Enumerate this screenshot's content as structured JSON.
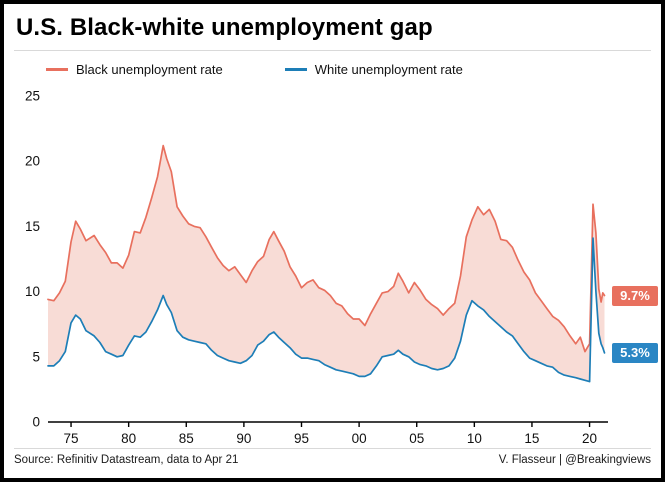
{
  "header": {
    "title": "U.S. Black-white unemployment gap"
  },
  "legend": [
    {
      "label": "Black unemployment rate",
      "color": "#e8705e"
    },
    {
      "label": "White unemployment rate",
      "color": "#1d7eb7"
    }
  ],
  "badges": [
    {
      "label": "9.7%",
      "color": "#e8705e",
      "value": 9.7
    },
    {
      "label": "5.3%",
      "color": "#2a86c4",
      "value": 5.3
    }
  ],
  "footer": {
    "source": "Source: Refinitiv Datastream, data to Apr 21",
    "credit": "V. Flasseur | @Breakingviews"
  },
  "chart_data": {
    "type": "line",
    "title": "U.S. Black-white unemployment gap",
    "xlabel": "",
    "ylabel": "",
    "xlim": [
      1973,
      2021.6
    ],
    "ylim": [
      0,
      25
    ],
    "grid": false,
    "legend_position": "top",
    "fill_between_color": "#f8dcd6",
    "axis_color": "#000000",
    "yticks": [
      0,
      5,
      10,
      15,
      20,
      25
    ],
    "xticks": [
      {
        "x": 1975,
        "label": "75"
      },
      {
        "x": 1980,
        "label": "80"
      },
      {
        "x": 1985,
        "label": "85"
      },
      {
        "x": 1990,
        "label": "90"
      },
      {
        "x": 1995,
        "label": "95"
      },
      {
        "x": 2000,
        "label": "00"
      },
      {
        "x": 2005,
        "label": "05"
      },
      {
        "x": 2010,
        "label": "10"
      },
      {
        "x": 2015,
        "label": "15"
      },
      {
        "x": 2020,
        "label": "20"
      }
    ],
    "x": [
      1973.0,
      1973.5,
      1974.0,
      1974.5,
      1975.0,
      1975.4,
      1975.8,
      1976.3,
      1977.0,
      1977.5,
      1978.0,
      1978.5,
      1979.0,
      1979.5,
      1980.0,
      1980.5,
      1981.0,
      1981.5,
      1982.0,
      1982.5,
      1983.0,
      1983.3,
      1983.7,
      1984.2,
      1984.7,
      1985.2,
      1985.7,
      1986.2,
      1986.7,
      1987.2,
      1987.7,
      1988.2,
      1988.7,
      1989.2,
      1989.7,
      1990.2,
      1990.7,
      1991.2,
      1991.7,
      1992.2,
      1992.6,
      1993.0,
      1993.5,
      1994.0,
      1994.5,
      1995.0,
      1995.5,
      1996.0,
      1996.5,
      1997.0,
      1997.5,
      1998.0,
      1998.5,
      1999.0,
      1999.5,
      2000.0,
      2000.5,
      2001.0,
      2001.5,
      2002.0,
      2002.5,
      2003.0,
      2003.4,
      2003.8,
      2004.3,
      2004.8,
      2005.3,
      2005.8,
      2006.3,
      2006.8,
      2007.3,
      2007.8,
      2008.3,
      2008.8,
      2009.3,
      2009.8,
      2010.3,
      2010.8,
      2011.3,
      2011.8,
      2012.3,
      2012.8,
      2013.3,
      2013.8,
      2014.3,
      2014.8,
      2015.3,
      2015.8,
      2016.3,
      2016.8,
      2017.3,
      2017.8,
      2018.3,
      2018.8,
      2019.2,
      2019.6,
      2020.0,
      2020.3,
      2020.55,
      2020.8,
      2021.0,
      2021.15,
      2021.3
    ],
    "series": [
      {
        "name": "Black unemployment rate",
        "color": "#e8705e",
        "end_label": "9.7%",
        "values": [
          9.4,
          9.3,
          9.9,
          10.8,
          13.8,
          15.4,
          14.8,
          13.9,
          14.3,
          13.6,
          13.0,
          12.2,
          12.2,
          11.8,
          12.8,
          14.6,
          14.5,
          15.7,
          17.2,
          18.8,
          21.2,
          20.2,
          19.2,
          16.5,
          15.8,
          15.2,
          15.0,
          14.9,
          14.2,
          13.4,
          12.6,
          12.0,
          11.6,
          11.9,
          11.3,
          10.7,
          11.6,
          12.3,
          12.7,
          14.0,
          14.6,
          13.9,
          13.1,
          11.9,
          11.2,
          10.3,
          10.7,
          10.9,
          10.3,
          10.1,
          9.7,
          9.1,
          8.9,
          8.3,
          7.9,
          7.9,
          7.4,
          8.3,
          9.1,
          9.9,
          10.0,
          10.4,
          11.4,
          10.8,
          9.9,
          10.7,
          10.1,
          9.4,
          9.0,
          8.7,
          8.2,
          8.7,
          9.1,
          11.2,
          14.2,
          15.5,
          16.5,
          15.9,
          16.3,
          15.4,
          14.0,
          13.9,
          13.4,
          12.4,
          11.5,
          10.9,
          9.9,
          9.3,
          8.7,
          8.1,
          7.8,
          7.3,
          6.6,
          6.0,
          6.5,
          5.4,
          6.0,
          16.7,
          14.5,
          10.2,
          9.2,
          9.9,
          9.7
        ]
      },
      {
        "name": "White unemployment rate",
        "color": "#1d7eb7",
        "end_label": "5.3%",
        "values": [
          4.3,
          4.3,
          4.7,
          5.4,
          7.6,
          8.2,
          7.9,
          7.0,
          6.6,
          6.1,
          5.4,
          5.2,
          5.0,
          5.1,
          5.9,
          6.6,
          6.5,
          6.9,
          7.7,
          8.6,
          9.7,
          9.0,
          8.4,
          7.0,
          6.5,
          6.3,
          6.2,
          6.1,
          6.0,
          5.5,
          5.1,
          4.9,
          4.7,
          4.6,
          4.5,
          4.7,
          5.1,
          5.9,
          6.2,
          6.7,
          6.9,
          6.5,
          6.1,
          5.7,
          5.2,
          4.9,
          4.9,
          4.8,
          4.7,
          4.4,
          4.2,
          4.0,
          3.9,
          3.8,
          3.7,
          3.5,
          3.5,
          3.7,
          4.3,
          5.0,
          5.1,
          5.2,
          5.5,
          5.2,
          5.0,
          4.6,
          4.4,
          4.3,
          4.1,
          4.0,
          4.1,
          4.3,
          4.9,
          6.2,
          8.2,
          9.3,
          8.9,
          8.6,
          8.1,
          7.7,
          7.3,
          6.9,
          6.6,
          6.0,
          5.4,
          4.9,
          4.7,
          4.5,
          4.3,
          4.2,
          3.8,
          3.6,
          3.5,
          3.4,
          3.3,
          3.2,
          3.1,
          14.1,
          10.0,
          6.8,
          6.0,
          5.7,
          5.3
        ]
      }
    ]
  }
}
